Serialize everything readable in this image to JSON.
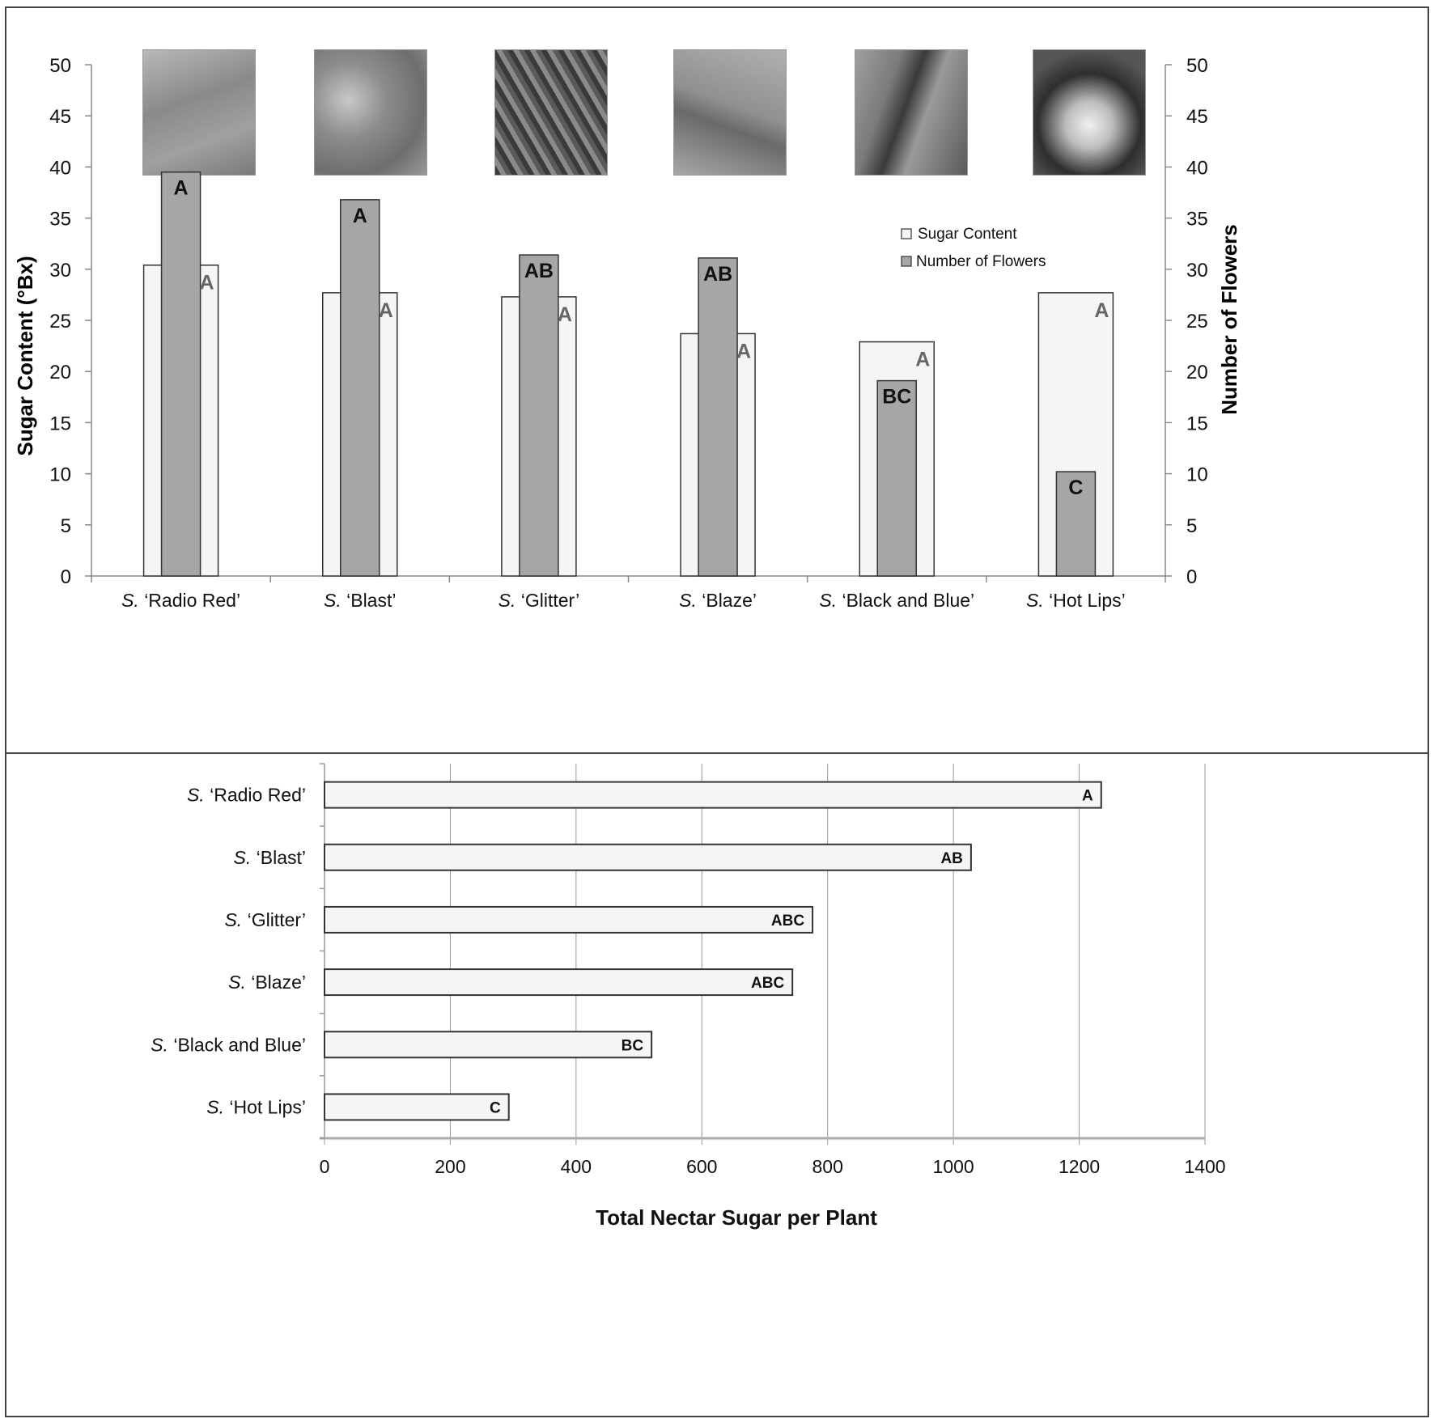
{
  "chart_data": [
    {
      "type": "bar",
      "title": "",
      "categories": [
        "S. 'Radio Red'",
        "S. 'Blast'",
        "S. 'Glitter'",
        "S. 'Blaze'",
        "S. 'Black and Blue'",
        "S. 'Hot Lips'"
      ],
      "series": [
        {
          "name": "Sugar Content",
          "axis": "left",
          "values": [
            30.4,
            27.7,
            27.3,
            23.7,
            22.9,
            27.7
          ],
          "letters": [
            "A",
            "A",
            "A",
            "A",
            "A",
            "A"
          ],
          "color": "#f5f5f5"
        },
        {
          "name": "Number of Flowers",
          "axis": "right",
          "values": [
            39.5,
            36.8,
            31.4,
            31.1,
            19.1,
            10.2
          ],
          "letters": [
            "A",
            "A",
            "AB",
            "AB",
            "BC",
            "C"
          ],
          "color": "#a6a6a6"
        }
      ],
      "xlabel": "",
      "ylabel": "Sugar Content (°Bx)",
      "y2label": "Number of Flowers",
      "ylim": [
        0,
        50
      ],
      "y2lim": [
        0,
        50
      ],
      "yticks": [
        0,
        5,
        10,
        15,
        20,
        25,
        30,
        35,
        40,
        45,
        50
      ],
      "grid": false,
      "legend_position": "upper right inside",
      "annotations": [
        "flower photo above each cultivar"
      ]
    },
    {
      "type": "bar",
      "orientation": "horizontal",
      "title": "",
      "categories": [
        "S. 'Radio Red'",
        "S. 'Blast'",
        "S. 'Glitter'",
        "S. 'Blaze'",
        "S. 'Black and Blue'",
        "S. 'Hot Lips'"
      ],
      "values": [
        1235,
        1028,
        776,
        744,
        520,
        293
      ],
      "letters": [
        "A",
        "AB",
        "ABC",
        "ABC",
        "BC",
        "C"
      ],
      "xlabel": "Total Nectar Sugar per Plant",
      "ylabel": "",
      "xlim": [
        0,
        1400
      ],
      "xticks": [
        0,
        200,
        400,
        600,
        800,
        1000,
        1200,
        1400
      ],
      "grid": true,
      "color": "#f5f5f5"
    }
  ],
  "top": {
    "ylabel": "Sugar Content (°Bx)",
    "y2label": "Number of Flowers",
    "legend": {
      "sugar": "Sugar Content",
      "flowers": "Number of Flowers"
    },
    "cat_prefix": "S.",
    "cat_names": [
      "‘Radio Red’",
      "‘Blast’",
      "‘Glitter’",
      "‘Blaze’",
      "‘Black and Blue’",
      "‘Hot Lips’"
    ]
  },
  "bottom": {
    "xlabel": "Total Nectar Sugar per Plant"
  },
  "colors": {
    "sugar_fill": "#f5f5f5",
    "flowers_fill": "#a6a6a6",
    "bar_stroke": "#333333",
    "letter_gray": "#666666",
    "axis": "#888888"
  }
}
